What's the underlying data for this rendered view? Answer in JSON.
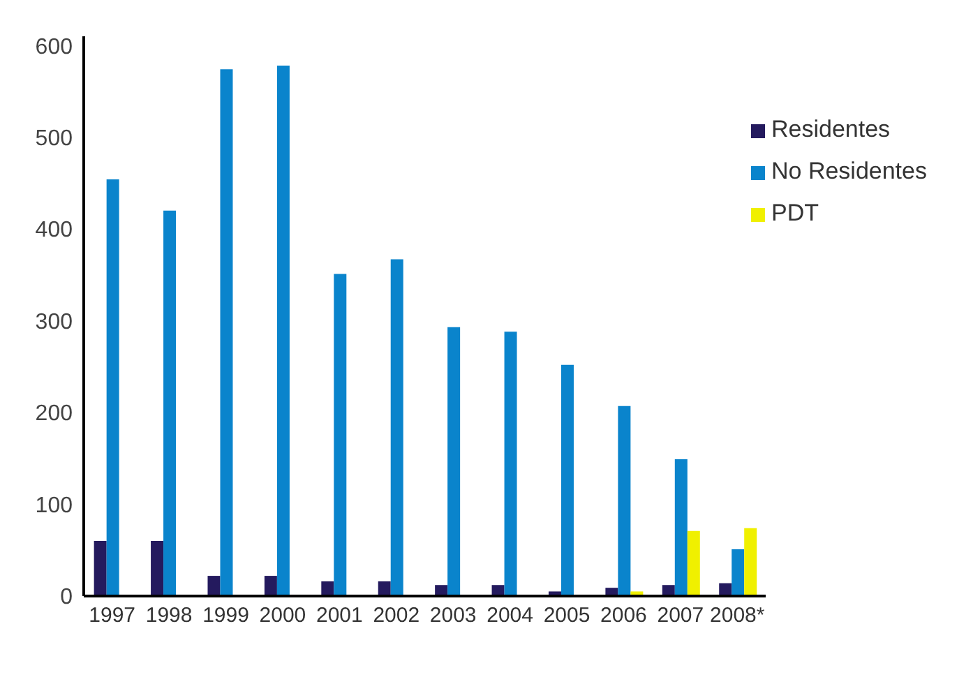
{
  "chart_data": {
    "type": "bar",
    "categories": [
      "1997",
      "1998",
      "1999",
      "2000",
      "2001",
      "2002",
      "2003",
      "2004",
      "2005",
      "2006",
      "2007",
      "2008*"
    ],
    "series": [
      {
        "name": "Residentes",
        "color": "#241a5e",
        "values": [
          60,
          60,
          22,
          22,
          16,
          16,
          12,
          12,
          5,
          9,
          12,
          14
        ]
      },
      {
        "name": "No Residentes",
        "color": "#0a84cc",
        "values": [
          454,
          420,
          574,
          578,
          351,
          367,
          293,
          288,
          252,
          207,
          149,
          51
        ]
      },
      {
        "name": "PDT",
        "color": "#f0f000",
        "values": [
          0,
          0,
          0,
          0,
          0,
          0,
          0,
          0,
          0,
          5,
          71,
          74
        ]
      }
    ],
    "ylim": [
      0,
      610
    ],
    "yticks": [
      0,
      100,
      200,
      300,
      400,
      500,
      600
    ],
    "grid": false,
    "legend": "top right"
  }
}
